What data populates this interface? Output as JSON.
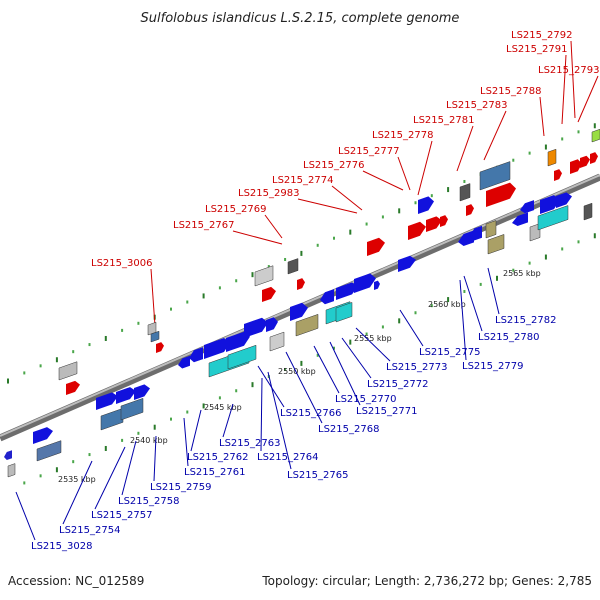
{
  "title": "Sulfolobus islandicus L.S.2.15, complete genome",
  "accession": "Accession: NC_012589",
  "summary": "Topology: circular; Length: 2,736,272 bp; Genes: 2,785",
  "colors": {
    "red_labels": "#cc0000",
    "blue_labels": "#0000aa",
    "backbone": "#888888"
  },
  "scale_ticks": [
    "2535 kbp",
    "2540 kbp",
    "2545 kbp",
    "2550 kbp",
    "2555 kbp",
    "2560 kbp",
    "2565 kbp"
  ],
  "top_labels": [
    "LS215_3006",
    "LS215_2767",
    "LS215_2769",
    "LS215_2983",
    "LS215_2774",
    "LS215_2776",
    "LS215_2777",
    "LS215_2778",
    "LS215_2781",
    "LS215_2783",
    "LS215_2788",
    "LS215_2791",
    "LS215_2792",
    "LS215_2793"
  ],
  "bottom_labels": [
    "LS215_3028",
    "LS215_2754",
    "LS215_2757",
    "LS215_2758",
    "LS215_2759",
    "LS215_2761",
    "LS215_2762",
    "LS215_2763",
    "LS215_2764",
    "LS215_2765",
    "LS215_2766",
    "LS215_2768",
    "LS215_2770",
    "LS215_2771",
    "LS215_2772",
    "LS215_2773",
    "LS215_2775",
    "LS215_2779",
    "LS215_2780",
    "LS215_2782"
  ]
}
